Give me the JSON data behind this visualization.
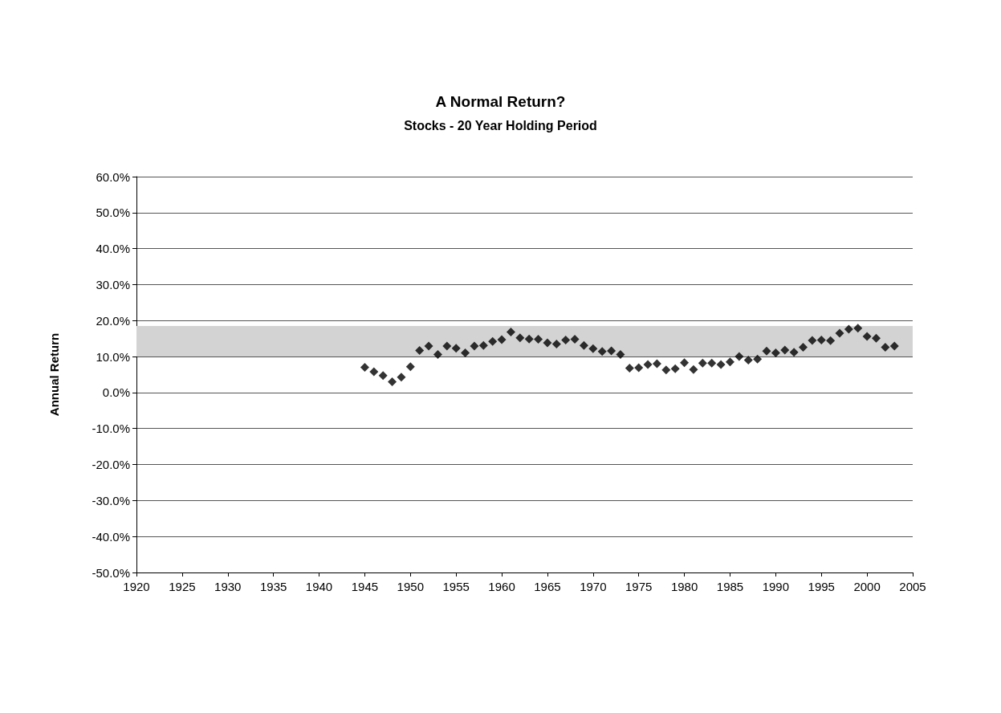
{
  "chart_data": {
    "type": "scatter",
    "title": "A Normal Return?",
    "subtitle": "Stocks - 20 Year Holding Period",
    "ylabel": "Annual Return",
    "x": [
      1945,
      1946,
      1947,
      1948,
      1949,
      1950,
      1951,
      1952,
      1953,
      1954,
      1955,
      1956,
      1957,
      1958,
      1959,
      1960,
      1961,
      1962,
      1963,
      1964,
      1965,
      1966,
      1967,
      1968,
      1969,
      1970,
      1971,
      1972,
      1973,
      1974,
      1975,
      1976,
      1977,
      1978,
      1979,
      1980,
      1981,
      1982,
      1983,
      1984,
      1985,
      1986,
      1987,
      1988,
      1989,
      1990,
      1991,
      1992,
      1993,
      1994,
      1995,
      1996,
      1997,
      1998,
      1999,
      2000,
      2001,
      2002,
      2003
    ],
    "series": [
      {
        "color": "#000000",
        "values": [
          7.0,
          5.8,
          4.7,
          3.0,
          4.3,
          7.2,
          11.7,
          12.9,
          10.6,
          12.9,
          12.3,
          11.0,
          12.9,
          13.1,
          14.2,
          14.7,
          16.8,
          15.2,
          14.9,
          14.8,
          13.8,
          13.5,
          14.6,
          14.8,
          13.1,
          12.2,
          11.4,
          11.6,
          10.6,
          6.8,
          6.9,
          7.8,
          8.0,
          6.3,
          6.6,
          8.3,
          6.4,
          8.2,
          8.2,
          7.8,
          8.5,
          10.0,
          9.0,
          9.3,
          11.5,
          11.0,
          11.8,
          11.2,
          12.6,
          14.5,
          14.6,
          14.4,
          16.5,
          17.6,
          17.9,
          15.6,
          15.1,
          12.6,
          12.9
        ]
      }
    ],
    "xlim": [
      1920,
      2005
    ],
    "xticks": [
      1920,
      1925,
      1930,
      1935,
      1940,
      1945,
      1950,
      1955,
      1960,
      1965,
      1970,
      1975,
      1980,
      1985,
      1990,
      1995,
      2000,
      2005
    ],
    "ylim": [
      -50,
      60
    ],
    "yticks": [
      {
        "value": -50,
        "label": "-50.0%"
      },
      {
        "value": -40,
        "label": "-40.0%"
      },
      {
        "value": -30,
        "label": "-30.0%"
      },
      {
        "value": -20,
        "label": "-20.0%"
      },
      {
        "value": -10,
        "label": "-10.0%"
      },
      {
        "value": 0,
        "label": "0.0%"
      },
      {
        "value": 10,
        "label": "10.0%"
      },
      {
        "value": 20,
        "label": "20.0%"
      },
      {
        "value": 30,
        "label": "30.0%"
      },
      {
        "value": 40,
        "label": "40.0%"
      },
      {
        "value": 50,
        "label": "50.0%"
      },
      {
        "value": 60,
        "label": "60.0%"
      }
    ],
    "bands": [
      {
        "axis": "y",
        "from": 10,
        "to": 18.5,
        "color": "#d3d3d4"
      }
    ],
    "grid": "y",
    "marker": "diamond"
  }
}
